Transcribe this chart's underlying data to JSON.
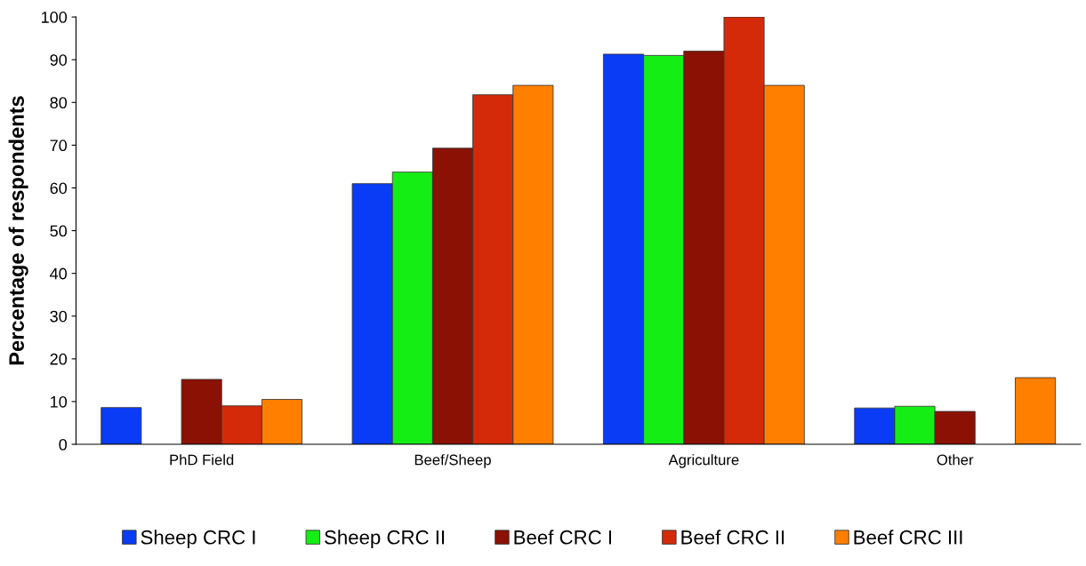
{
  "chart_data": {
    "type": "bar",
    "ylabel": "Percentage of respondents",
    "categories": [
      "PhD Field",
      "Beef/Sheep",
      "Agriculture",
      "Other"
    ],
    "series": [
      {
        "name": "Sheep CRC I",
        "color": "#0a3cf5",
        "values": [
          8.6,
          61,
          91.3,
          8.5
        ]
      },
      {
        "name": "Sheep CRC II",
        "color": "#15ee15",
        "values": [
          null,
          63.7,
          91,
          8.9
        ]
      },
      {
        "name": "Beef CRC I",
        "color": "#8b1105",
        "values": [
          15.2,
          69.3,
          92,
          7.7
        ]
      },
      {
        "name": "Beef CRC II",
        "color": "#d42a0a",
        "values": [
          9,
          81.8,
          100,
          null
        ]
      },
      {
        "name": "Beef CRC III",
        "color": "#ff7f00",
        "values": [
          10.5,
          84,
          84,
          15.6
        ]
      }
    ],
    "ylim": [
      0,
      100
    ],
    "yticks": [
      0,
      10,
      20,
      30,
      40,
      50,
      60,
      70,
      80,
      90,
      100
    ],
    "grid": false,
    "legend": "bottom"
  }
}
